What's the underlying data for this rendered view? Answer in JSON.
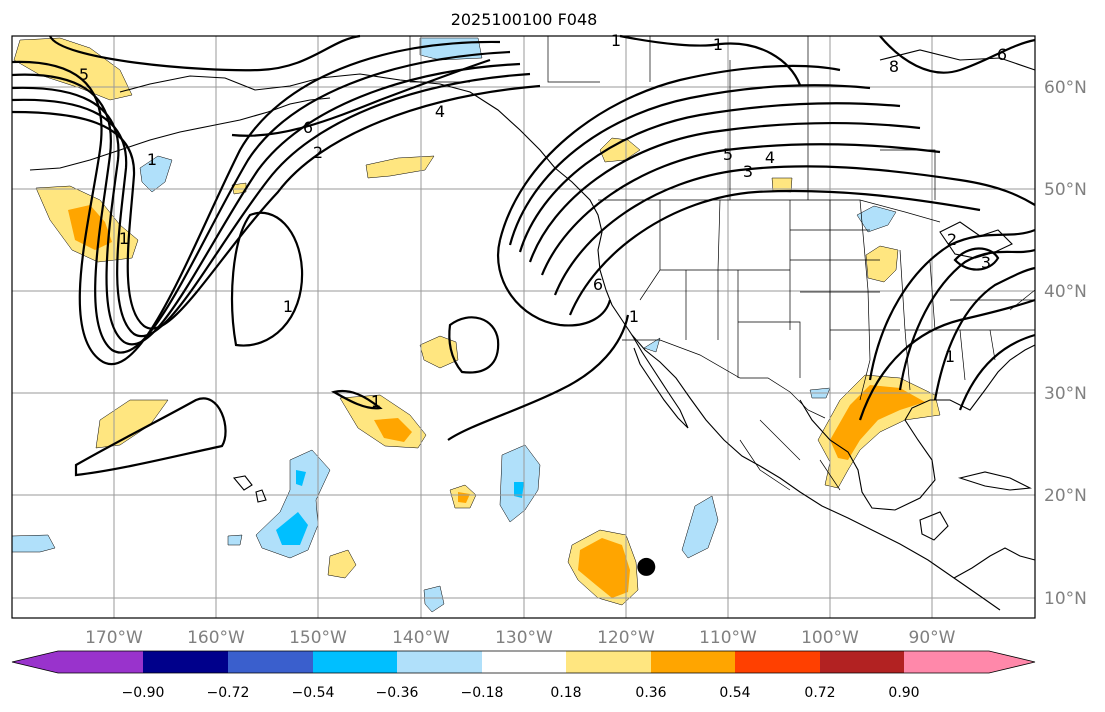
{
  "title": "2025100100 F048",
  "map": {
    "projection": "Plate Carree",
    "extent_lon": [
      -180,
      -80
    ],
    "extent_lat": [
      8,
      65
    ],
    "lon_ticks": [
      "170°W",
      "160°W",
      "150°W",
      "140°W",
      "130°W",
      "120°W",
      "110°W",
      "100°W",
      "90°W"
    ],
    "lat_ticks": [
      "60°N",
      "50°N",
      "40°N",
      "30°N",
      "20°N",
      "10°N"
    ],
    "contour_labels": [
      "5",
      "6",
      "2",
      "4",
      "1",
      "1",
      "5",
      "4",
      "3",
      "6",
      "1",
      "1",
      "1",
      "2",
      "3",
      "1",
      "6",
      "1",
      "1",
      "8"
    ],
    "marker": {
      "name": "black-dot",
      "lon": -118,
      "lat": 13
    }
  },
  "colorbar": {
    "ticks": [
      "−0.90",
      "−0.72",
      "−0.54",
      "−0.36",
      "−0.18",
      "0.18",
      "0.36",
      "0.54",
      "0.72",
      "0.90"
    ],
    "colors": [
      "#9933cc",
      "#00008b",
      "#3a5fcd",
      "#00bfff",
      "#b0e0fa",
      "#ffffff",
      "#ffe680",
      "#ffa500",
      "#ff4000",
      "#b22222",
      "#ff88aa"
    ]
  }
}
